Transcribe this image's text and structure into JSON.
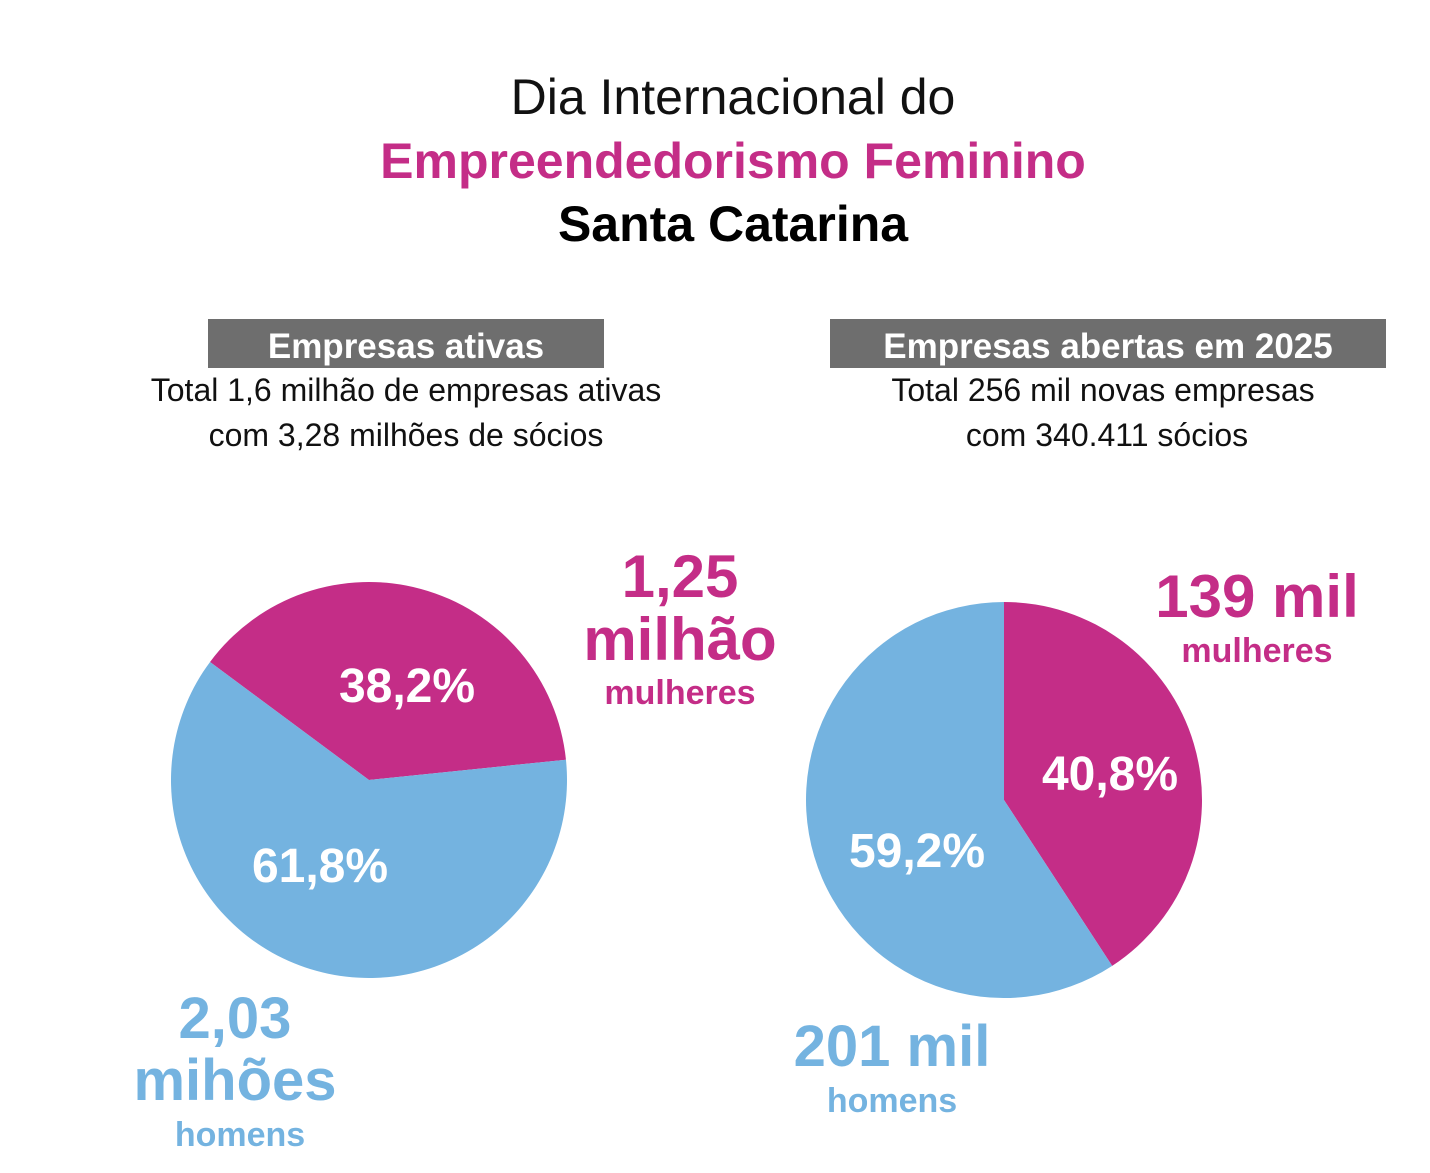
{
  "title": {
    "line1": "Dia Internacional do",
    "line2": "Empreendedorismo Feminino",
    "line3": "Santa Catarina"
  },
  "colors": {
    "women": "#C42D87",
    "men": "#74B3E0",
    "header_box": "#6E6E6E"
  },
  "chart_data": [
    {
      "type": "pie",
      "title": "Empresas ativas",
      "subtitle": [
        "Total  1,6 milhão de empresas ativas",
        "com 3,28 milhões de sócios"
      ],
      "slices": [
        {
          "label": "mulheres",
          "value": 38.2,
          "value_label": "38,2%",
          "count_lines": [
            "1,25",
            "milhão"
          ],
          "color": "#C42D87"
        },
        {
          "label": "homens",
          "value": 61.8,
          "value_label": "61,8%",
          "count_lines": [
            "2,03",
            "mihões"
          ],
          "color": "#74B3E0"
        }
      ]
    },
    {
      "type": "pie",
      "title": "Empresas abertas em 2025",
      "subtitle": [
        "Total 256 mil novas empresas",
        "com 340.411 sócios"
      ],
      "slices": [
        {
          "label": "mulheres",
          "value": 40.8,
          "value_label": "40,8%",
          "count_lines": [
            "139 mil"
          ],
          "color": "#C42D87"
        },
        {
          "label": "homens",
          "value": 59.2,
          "value_label": "59,2%",
          "count_lines": [
            "201 mil"
          ],
          "color": "#74B3E0"
        }
      ]
    }
  ]
}
